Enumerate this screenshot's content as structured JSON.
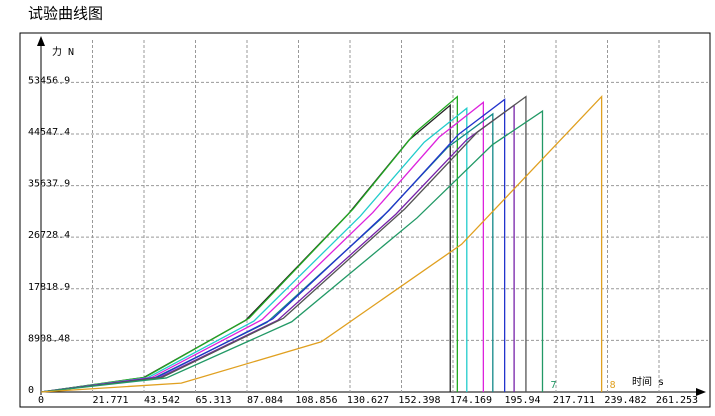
{
  "chart_data": {
    "type": "line",
    "title": "试验曲线图",
    "y_label": "力 N",
    "x_label": "时间 s",
    "xlim": [
      0,
      283
    ],
    "ylim": [
      0,
      62000
    ],
    "xticks": [
      0,
      21.771,
      43.542,
      65.313,
      87.084,
      108.856,
      130.627,
      152.398,
      174.169,
      195.94,
      217.711,
      239.482,
      261.253
    ],
    "yticks": [
      0,
      8908.48,
      17818.9,
      26728.4,
      35637.9,
      44547.4,
      53456.9
    ],
    "grid": true,
    "series": [
      {
        "color": "#222222",
        "x": [
          0,
          43.3,
          86.5,
          129.8,
          155.7,
          173,
          173
        ],
        "values": [
          0,
          2475,
          12375,
          30690,
          43560,
          49500,
          0
        ]
      },
      {
        "color": "#22aa22",
        "x": [
          0,
          44,
          88,
          132,
          158.4,
          176,
          176
        ],
        "values": [
          0,
          2550,
          12750,
          31620,
          44880,
          51000,
          0
        ]
      },
      {
        "color": "#22cccc",
        "x": [
          0,
          45,
          90,
          135,
          162,
          180,
          180
        ],
        "values": [
          0,
          2450,
          12250,
          30380,
          43120,
          49000,
          0
        ]
      },
      {
        "color": "#dd22dd",
        "x": [
          0,
          46.8,
          93.5,
          140.3,
          168.3,
          187,
          187
        ],
        "values": [
          0,
          2500,
          12500,
          31000,
          44000,
          50000,
          0
        ]
      },
      {
        "color": "#118888",
        "x": [
          0,
          47.8,
          95.5,
          143.3,
          171.9,
          191,
          191
        ],
        "values": [
          0,
          2400,
          12000,
          29760,
          42240,
          48000,
          0
        ]
      },
      {
        "color": "#2233cc",
        "x": [
          0,
          49,
          98,
          147,
          176.4,
          196,
          196
        ],
        "values": [
          0,
          2525,
          12625,
          31310,
          44440,
          50500,
          0
        ]
      },
      {
        "color": "#7722aa",
        "x": [
          0,
          50,
          100,
          150,
          180,
          200,
          200
        ],
        "values": [
          0,
          2475,
          12375,
          30690,
          43560,
          49500,
          0
        ]
      },
      {
        "color": "#555555",
        "x": [
          0,
          51.3,
          102.5,
          153.8,
          184.5,
          205,
          205
        ],
        "values": [
          0,
          2550,
          12750,
          31620,
          44880,
          51000,
          0
        ]
      },
      {
        "name": "7",
        "color": "#229966",
        "x": [
          0,
          53,
          106,
          159,
          190.8,
          212,
          212
        ],
        "values": [
          0,
          2425,
          12125,
          30070,
          42680,
          48500,
          0
        ]
      },
      {
        "name": "8",
        "color": "#e0a020",
        "x": [
          0,
          59.3,
          118.5,
          177.8,
          213.3,
          237,
          237
        ],
        "values": [
          0,
          1530,
          8670,
          25500,
          40800,
          51000,
          0
        ]
      }
    ]
  }
}
